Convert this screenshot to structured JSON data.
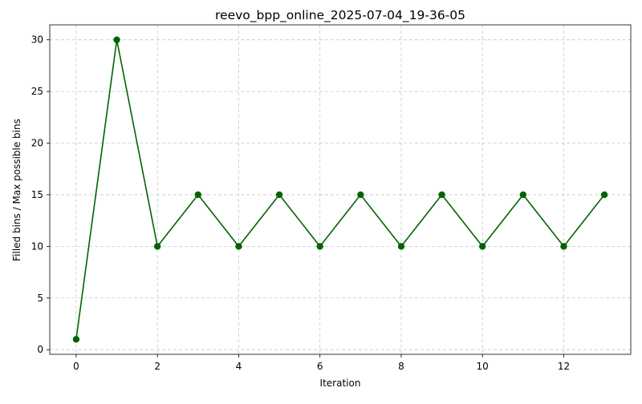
{
  "chart_data": {
    "type": "line",
    "title": "reevo_bpp_online_2025-07-04_19-36-05",
    "xlabel": "Iteration",
    "ylabel": "Filled bins / Max possible bins",
    "x": [
      0,
      1,
      2,
      3,
      4,
      5,
      6,
      7,
      8,
      9,
      10,
      11,
      12,
      13
    ],
    "series": [
      {
        "values": [
          1,
          30,
          10,
          15,
          10,
          15,
          10,
          15,
          10,
          15,
          10,
          15,
          10,
          15
        ],
        "color": "#006400",
        "marker": "circle"
      }
    ],
    "xlim": [
      -0.65,
      13.65
    ],
    "ylim": [
      -0.45,
      31.45
    ],
    "xticks": [
      0,
      2,
      4,
      6,
      8,
      10,
      12
    ],
    "yticks": [
      0,
      5,
      10,
      15,
      20,
      25,
      30
    ],
    "grid": true,
    "legend": "none"
  }
}
